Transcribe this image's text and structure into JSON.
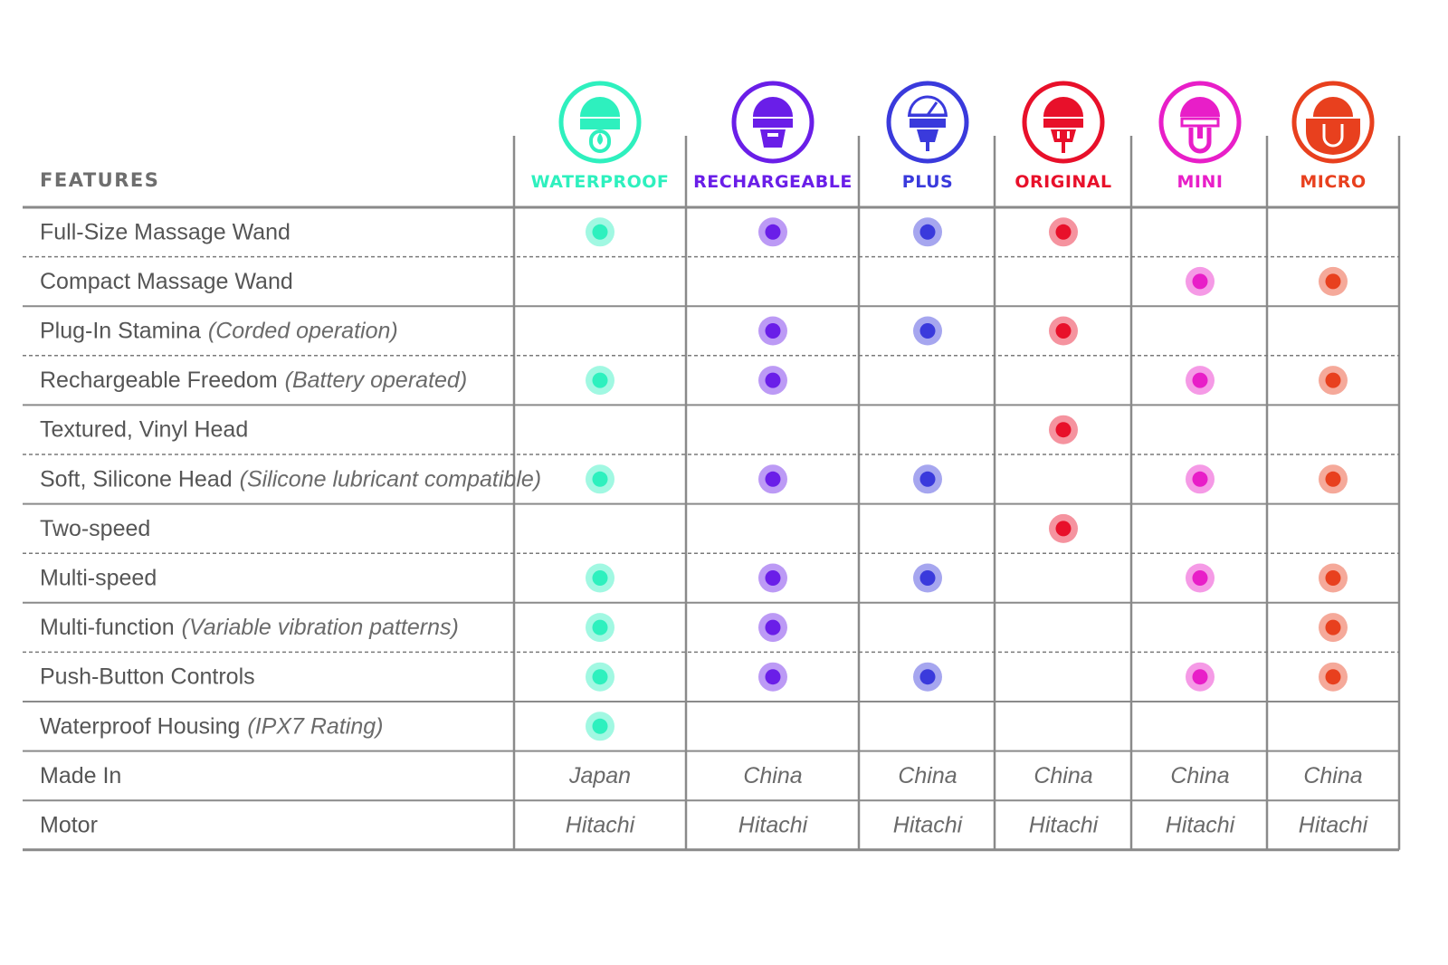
{
  "chart_data": {
    "type": "table",
    "header_label": "FEATURES",
    "models": [
      {
        "name": "WATERPROOF",
        "color": "#2ef0be",
        "icon": "waterproof-wand-icon"
      },
      {
        "name": "RECHARGEABLE",
        "color": "#6a1ee8",
        "icon": "rechargeable-wand-icon"
      },
      {
        "name": "PLUS",
        "color": "#3a3adc",
        "icon": "plus-wand-gauge-icon"
      },
      {
        "name": "ORIGINAL",
        "color": "#e8102a",
        "icon": "original-wand-plug-icon"
      },
      {
        "name": "MINI",
        "color": "#e81ec8",
        "icon": "mini-wand-icon"
      },
      {
        "name": "MICRO",
        "color": "#e8401e",
        "icon": "micro-wand-pocket-icon"
      }
    ],
    "rows": [
      {
        "feature": "Full-Size Massage Wand",
        "note": "",
        "marks": [
          true,
          true,
          true,
          true,
          false,
          false
        ]
      },
      {
        "feature": "Compact Massage Wand",
        "note": "",
        "marks": [
          false,
          false,
          false,
          false,
          true,
          true
        ]
      },
      {
        "feature": "Plug-In Stamina",
        "note": "(Corded operation)",
        "marks": [
          false,
          true,
          true,
          true,
          false,
          false
        ]
      },
      {
        "feature": "Rechargeable Freedom",
        "note": "(Battery operated)",
        "marks": [
          true,
          true,
          false,
          false,
          true,
          true
        ]
      },
      {
        "feature": "Textured, Vinyl Head",
        "note": "",
        "marks": [
          false,
          false,
          false,
          true,
          false,
          false
        ]
      },
      {
        "feature": "Soft, Silicone Head",
        "note": "(Silicone lubricant compatible)",
        "marks": [
          true,
          true,
          true,
          false,
          true,
          true
        ]
      },
      {
        "feature": "Two-speed",
        "note": "",
        "marks": [
          false,
          false,
          false,
          true,
          false,
          false
        ]
      },
      {
        "feature": "Multi-speed",
        "note": "",
        "marks": [
          true,
          true,
          true,
          false,
          true,
          true
        ]
      },
      {
        "feature": "Multi-function",
        "note": "(Variable vibration patterns)",
        "marks": [
          true,
          true,
          false,
          false,
          false,
          true
        ]
      },
      {
        "feature": "Push-Button Controls",
        "note": "",
        "marks": [
          true,
          true,
          true,
          false,
          true,
          true
        ]
      },
      {
        "feature": "Waterproof Housing",
        "note": "(IPX7 Rating)",
        "marks": [
          true,
          false,
          false,
          false,
          false,
          false
        ]
      }
    ],
    "text_rows": [
      {
        "feature": "Made In",
        "values": [
          "Japan",
          "China",
          "China",
          "China",
          "China",
          "China"
        ]
      },
      {
        "feature": "Motor",
        "values": [
          "Hitachi",
          "Hitachi",
          "Hitachi",
          "Hitachi",
          "Hitachi",
          "Hitachi"
        ]
      }
    ]
  }
}
